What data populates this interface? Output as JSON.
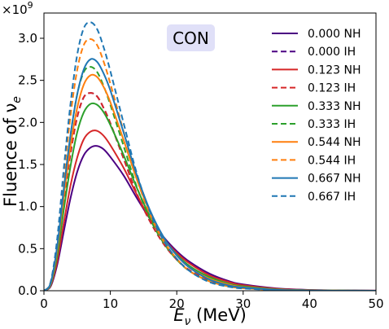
{
  "chart_data": {
    "type": "line",
    "title": "",
    "xlabel": "E",
    "xlabel_sub": "ν",
    "xlabel_unit": " (MeV)",
    "ylabel": "Fluence of ν",
    "ylabel_sub": "e",
    "offset_label_base": "×10",
    "offset_label_exp": "9",
    "annotation": "CON",
    "annotation_bg": "#e0e0f8",
    "xlim": [
      0,
      50
    ],
    "ylim": [
      0,
      3.3
    ],
    "x_ticks": [
      0,
      10,
      20,
      30,
      40,
      50
    ],
    "x_tick_labels": [
      "0",
      "10",
      "20",
      "30",
      "40",
      "50"
    ],
    "y_ticks": [
      0,
      0.5,
      1.0,
      1.5,
      2.0,
      2.5,
      3.0
    ],
    "y_tick_labels": [
      "0.0",
      "0.5",
      "1.0",
      "1.5",
      "2.0",
      "2.5",
      "3.0"
    ],
    "legend_position": "top-right",
    "grid": false,
    "x": [
      0,
      1,
      2,
      3,
      4,
      5,
      6,
      7,
      8,
      9,
      10,
      12,
      14,
      16,
      18,
      20,
      22,
      25,
      28,
      30,
      35,
      40,
      45,
      50
    ],
    "series": [
      {
        "name": "0.000 NH",
        "color": "#4b0082",
        "dash": "solid",
        "values": [
          0,
          0.05,
          0.31,
          0.71,
          1.1,
          1.41,
          1.61,
          1.7,
          1.72,
          1.68,
          1.59,
          1.37,
          1.1,
          0.85,
          0.64,
          0.47,
          0.34,
          0.2,
          0.11,
          0.075,
          0.028,
          0.01,
          0.004,
          0.001
        ]
      },
      {
        "name": "0.000 IH",
        "color": "#4b0082",
        "dash": "dashed",
        "values": [
          0,
          0.08,
          0.45,
          1.07,
          1.63,
          2.06,
          2.3,
          2.35,
          2.31,
          2.17,
          1.99,
          1.57,
          1.15,
          0.82,
          0.56,
          0.37,
          0.24,
          0.12,
          0.06,
          0.037,
          0.011,
          0.003,
          0.001,
          0.0003
        ]
      },
      {
        "name": "0.123 NH",
        "color": "#d62728",
        "dash": "solid",
        "values": [
          0,
          0.06,
          0.35,
          0.81,
          1.25,
          1.58,
          1.8,
          1.89,
          1.9,
          1.84,
          1.73,
          1.46,
          1.14,
          0.85,
          0.62,
          0.45,
          0.32,
          0.18,
          0.1,
          0.065,
          0.023,
          0.008,
          0.003,
          0.001
        ]
      },
      {
        "name": "0.123 IH",
        "color": "#d62728",
        "dash": "dashed",
        "values": [
          0,
          0.08,
          0.45,
          1.07,
          1.63,
          2.06,
          2.3,
          2.35,
          2.31,
          2.17,
          1.99,
          1.57,
          1.15,
          0.82,
          0.56,
          0.37,
          0.24,
          0.12,
          0.06,
          0.037,
          0.011,
          0.003,
          0.001,
          0.0003
        ]
      },
      {
        "name": "0.333 NH",
        "color": "#2ca02c",
        "dash": "solid",
        "values": [
          0,
          0.07,
          0.42,
          0.97,
          1.48,
          1.88,
          2.12,
          2.22,
          2.21,
          2.12,
          1.97,
          1.61,
          1.22,
          0.88,
          0.62,
          0.43,
          0.29,
          0.16,
          0.08,
          0.052,
          0.017,
          0.006,
          0.002,
          0.0006
        ]
      },
      {
        "name": "0.333 IH",
        "color": "#2ca02c",
        "dash": "dashed",
        "values": [
          0,
          0.09,
          0.52,
          1.21,
          1.85,
          2.33,
          2.6,
          2.66,
          2.6,
          2.43,
          2.21,
          1.72,
          1.23,
          0.85,
          0.57,
          0.37,
          0.23,
          0.11,
          0.05,
          0.032,
          0.009,
          0.002,
          0.0007,
          0.0002
        ]
      },
      {
        "name": "0.544 NH",
        "color": "#ff7f0e",
        "dash": "solid",
        "values": [
          0,
          0.08,
          0.49,
          1.13,
          1.72,
          2.17,
          2.45,
          2.56,
          2.54,
          2.42,
          2.24,
          1.79,
          1.32,
          0.93,
          0.63,
          0.42,
          0.27,
          0.14,
          0.07,
          0.043,
          0.013,
          0.004,
          0.001,
          0.0004
        ]
      },
      {
        "name": "0.544 IH",
        "color": "#ff7f0e",
        "dash": "dashed",
        "values": [
          0,
          0.1,
          0.58,
          1.37,
          2.08,
          2.62,
          2.92,
          2.99,
          2.92,
          2.72,
          2.46,
          1.89,
          1.33,
          0.9,
          0.59,
          0.38,
          0.23,
          0.11,
          0.05,
          0.029,
          0.008,
          0.002,
          0.0005,
          0.0001
        ]
      },
      {
        "name": "0.667 NH",
        "color": "#1f77b4",
        "dash": "solid",
        "values": [
          0,
          0.09,
          0.53,
          1.22,
          1.85,
          2.33,
          2.63,
          2.75,
          2.72,
          2.58,
          2.38,
          1.88,
          1.37,
          0.95,
          0.64,
          0.42,
          0.27,
          0.13,
          0.06,
          0.039,
          0.011,
          0.003,
          0.001,
          0.0003
        ]
      },
      {
        "name": "0.667 IH",
        "color": "#1f77b4",
        "dash": "dashed",
        "values": [
          0,
          0.1,
          0.62,
          1.46,
          2.22,
          2.8,
          3.12,
          3.19,
          3.11,
          2.89,
          2.61,
          1.99,
          1.39,
          0.93,
          0.6,
          0.38,
          0.23,
          0.1,
          0.045,
          0.027,
          0.007,
          0.0015,
          0.0004,
          0.0001
        ]
      }
    ]
  }
}
